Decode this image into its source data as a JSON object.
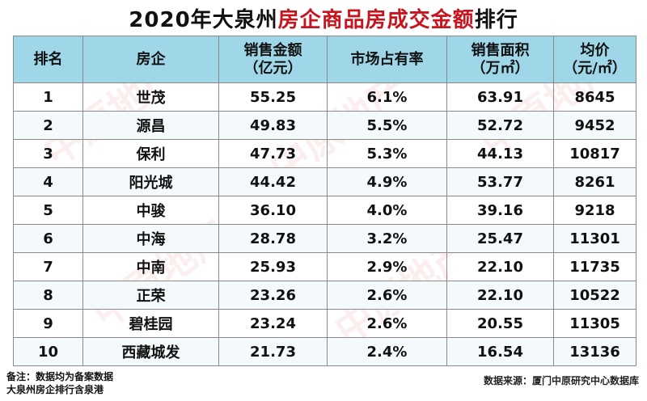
{
  "title": {
    "part1": "2020年大泉州",
    "accent": "房企商品房成交金额",
    "part2": "排行"
  },
  "table": {
    "headers": [
      {
        "line1": "排名",
        "line2": ""
      },
      {
        "line1": "房企",
        "line2": ""
      },
      {
        "line1": "销售金额",
        "line2": "（亿元）"
      },
      {
        "line1": "市场占有率",
        "line2": ""
      },
      {
        "line1": "销售面积",
        "line2": "（万㎡）"
      },
      {
        "line1": "均价",
        "line2": "（元/㎡）"
      }
    ],
    "rows": [
      {
        "rank": "1",
        "company": "世茂",
        "amount": "55.25",
        "share": "6.1%",
        "area": "63.91",
        "price": "8645"
      },
      {
        "rank": "2",
        "company": "源昌",
        "amount": "49.83",
        "share": "5.5%",
        "area": "52.72",
        "price": "9452"
      },
      {
        "rank": "3",
        "company": "保利",
        "amount": "47.73",
        "share": "5.3%",
        "area": "44.13",
        "price": "10817"
      },
      {
        "rank": "4",
        "company": "阳光城",
        "amount": "44.42",
        "share": "4.9%",
        "area": "53.77",
        "price": "8261"
      },
      {
        "rank": "5",
        "company": "中骏",
        "amount": "36.10",
        "share": "4.0%",
        "area": "39.16",
        "price": "9218"
      },
      {
        "rank": "6",
        "company": "中海",
        "amount": "28.78",
        "share": "3.2%",
        "area": "25.47",
        "price": "11301"
      },
      {
        "rank": "7",
        "company": "中南",
        "amount": "25.93",
        "share": "2.9%",
        "area": "22.10",
        "price": "11735"
      },
      {
        "rank": "8",
        "company": "正荣",
        "amount": "23.26",
        "share": "2.6%",
        "area": "22.10",
        "price": "10522"
      },
      {
        "rank": "9",
        "company": "碧桂园",
        "amount": "23.24",
        "share": "2.6%",
        "area": "20.55",
        "price": "11305"
      },
      {
        "rank": "10",
        "company": "西藏城发",
        "amount": "21.73",
        "share": "2.4%",
        "area": "16.54",
        "price": "13136"
      }
    ]
  },
  "footer": {
    "note_line1": "备注：数据均为备案数据",
    "note_line2": "大泉州房企排行含泉港",
    "source": "数据来源：厦门中原研究中心数据库"
  },
  "watermark": {
    "text": "中原地产"
  },
  "colors": {
    "accent": "#c8141e",
    "header_bg": "#9fd7e9"
  }
}
